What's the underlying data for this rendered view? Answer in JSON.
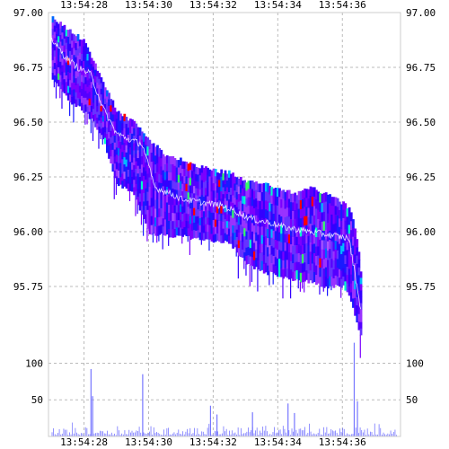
{
  "chart_data": {
    "type": "heatmap",
    "title": "",
    "xlabel": "",
    "ylabel": "",
    "x_tick_labels": [
      "13:54:28",
      "13:54:30",
      "13:54:32",
      "13:54:34",
      "13:54:36"
    ],
    "x_tick_seconds": [
      28,
      30,
      32,
      34,
      36
    ],
    "x_range_seconds": [
      26.9,
      37.8
    ],
    "price_panel": {
      "ylim": [
        95.5,
        97.0
      ],
      "y_ticks": [
        97.0,
        96.75,
        96.5,
        96.25,
        96.0,
        95.75
      ],
      "y_tick_labels": [
        "97.00",
        "96.75",
        "96.50",
        "96.25",
        "96.00",
        "95.75"
      ],
      "mid_price": {
        "x": [
          27.0,
          27.4,
          27.8,
          28.2,
          28.6,
          29.0,
          29.4,
          29.8,
          30.2,
          30.6,
          31.0,
          31.4,
          31.8,
          32.2,
          32.6,
          33.0,
          33.4,
          33.8,
          34.2,
          34.6,
          35.0,
          35.4,
          35.8,
          36.2,
          36.4,
          36.6
        ],
        "y": [
          96.88,
          96.8,
          96.75,
          96.72,
          96.56,
          96.45,
          96.42,
          96.4,
          96.2,
          96.18,
          96.15,
          96.14,
          96.13,
          96.12,
          96.1,
          96.07,
          96.05,
          96.04,
          96.02,
          96.01,
          96.0,
          95.99,
          95.98,
          95.97,
          95.8,
          95.62
        ]
      },
      "book_upper_edge": {
        "x": [
          27.0,
          27.5,
          28.0,
          28.5,
          29.0,
          29.5,
          30.0,
          30.5,
          31.0,
          31.5,
          32.0,
          32.5,
          33.0,
          33.5,
          34.0,
          34.5,
          35.0,
          35.5,
          36.0,
          36.2,
          36.4,
          36.6
        ],
        "y": [
          96.98,
          96.92,
          96.87,
          96.7,
          96.55,
          96.5,
          96.42,
          96.35,
          96.33,
          96.3,
          96.28,
          96.27,
          96.23,
          96.22,
          96.2,
          96.17,
          96.2,
          96.17,
          96.13,
          96.1,
          96.0,
          95.75
        ]
      },
      "book_lower_edge": {
        "x": [
          27.0,
          27.5,
          28.0,
          28.5,
          29.0,
          29.5,
          30.0,
          30.5,
          31.0,
          31.5,
          32.0,
          32.5,
          33.0,
          33.5,
          34.0,
          34.5,
          35.0,
          35.5,
          36.0,
          36.2,
          36.4,
          36.6
        ],
        "y": [
          96.7,
          96.6,
          96.55,
          96.45,
          96.22,
          96.18,
          96.0,
          95.98,
          95.98,
          95.97,
          95.96,
          95.95,
          95.85,
          95.82,
          95.8,
          95.78,
          95.77,
          95.75,
          95.75,
          95.7,
          95.6,
          95.5
        ]
      },
      "colors": [
        "#7b00ff",
        "#5500ff",
        "#3300ff",
        "#1a1aff",
        "#9933ff",
        "#6633ff",
        "#00bbff",
        "#00ffcc",
        "#33ff66",
        "#ff0000",
        "#0066ff",
        "#aa55ff"
      ]
    },
    "volume_panel": {
      "ylim": [
        0,
        130
      ],
      "y_ticks": [
        100,
        50
      ],
      "y_tick_labels": [
        "100",
        "50"
      ],
      "bar_color": "#7777ff",
      "spikes": [
        {
          "x": 28.2,
          "y": 92
        },
        {
          "x": 28.25,
          "y": 55
        },
        {
          "x": 29.8,
          "y": 85
        },
        {
          "x": 31.9,
          "y": 42
        },
        {
          "x": 32.1,
          "y": 30
        },
        {
          "x": 33.2,
          "y": 33
        },
        {
          "x": 34.3,
          "y": 45
        },
        {
          "x": 34.5,
          "y": 32
        },
        {
          "x": 36.35,
          "y": 128
        },
        {
          "x": 36.45,
          "y": 48
        }
      ]
    }
  }
}
